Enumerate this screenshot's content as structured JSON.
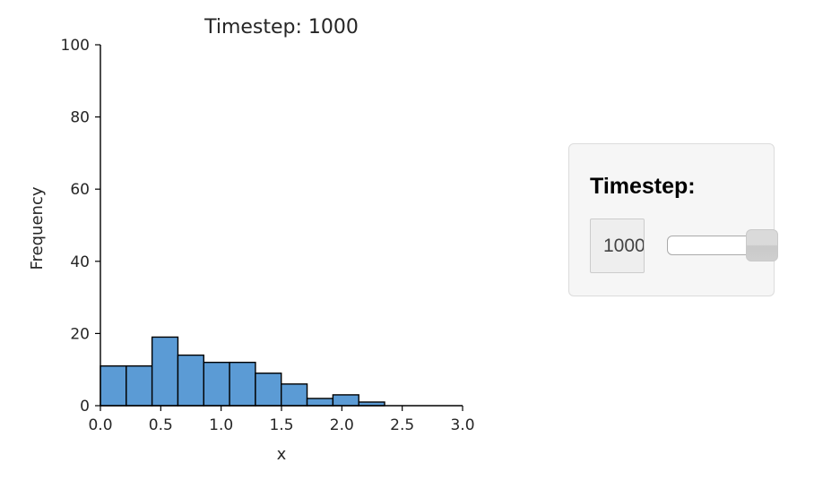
{
  "chart_data": {
    "type": "bar",
    "title": "Timestep: 1000",
    "xlabel": "x",
    "ylabel": "Frequency",
    "xlim": [
      0,
      3
    ],
    "ylim": [
      0,
      100
    ],
    "x_ticks": [
      0,
      0.5,
      1,
      1.5,
      2,
      2.5,
      3
    ],
    "x_tick_labels": [
      "0.0",
      "0.5",
      "1.0",
      "1.5",
      "2.0",
      "2.5",
      "3.0"
    ],
    "y_ticks": [
      0,
      20,
      40,
      60,
      80,
      100
    ],
    "y_tick_labels": [
      "0",
      "20",
      "40",
      "60",
      "80",
      "100"
    ],
    "bin_edges": [
      0.0,
      0.214,
      0.428,
      0.642,
      0.856,
      1.07,
      1.284,
      1.498,
      1.712,
      1.926,
      2.14,
      2.354
    ],
    "values": [
      11,
      11,
      19,
      14,
      12,
      12,
      9,
      6,
      2,
      3,
      1
    ],
    "bar_color": "#5b9bd5",
    "edge_color": "#000000",
    "grid": false
  },
  "controls": {
    "timestep_label": "Timestep:",
    "timestep_value": "1000",
    "slider_fraction": 1.0
  }
}
